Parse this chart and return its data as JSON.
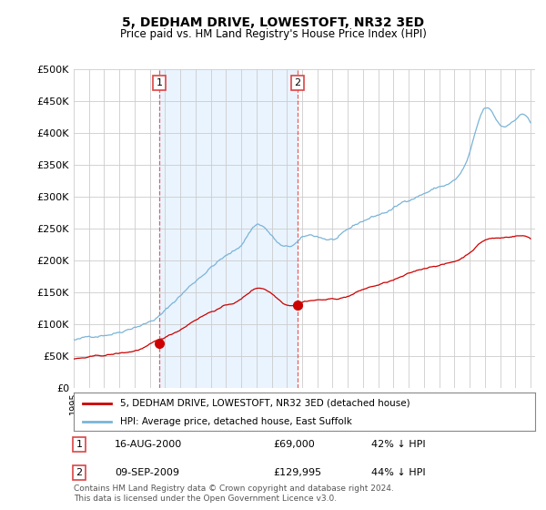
{
  "title": "5, DEDHAM DRIVE, LOWESTOFT, NR32 3ED",
  "subtitle": "Price paid vs. HM Land Registry's House Price Index (HPI)",
  "ytick_values": [
    0,
    50000,
    100000,
    150000,
    200000,
    250000,
    300000,
    350000,
    400000,
    450000,
    500000
  ],
  "ylim": [
    0,
    500000
  ],
  "xlim_start": 1995.0,
  "xlim_end": 2025.3,
  "hpi_color": "#7ab4d8",
  "price_color": "#cc0000",
  "shade_color": "#ddeeff",
  "marker1_year": 2000.62,
  "marker1_price": 69000,
  "marker2_year": 2009.69,
  "marker2_price": 129995,
  "transaction1_label": "16-AUG-2000",
  "transaction1_price": "£69,000",
  "transaction1_note": "42% ↓ HPI",
  "transaction2_label": "09-SEP-2009",
  "transaction2_price": "£129,995",
  "transaction2_note": "44% ↓ HPI",
  "legend_line1": "5, DEDHAM DRIVE, LOWESTOFT, NR32 3ED (detached house)",
  "legend_line2": "HPI: Average price, detached house, East Suffolk",
  "footer": "Contains HM Land Registry data © Crown copyright and database right 2024.\nThis data is licensed under the Open Government Licence v3.0.",
  "background_color": "#ffffff",
  "plot_bg_color": "#ffffff",
  "grid_color": "#cccccc",
  "dashed_color": "#dd4444"
}
